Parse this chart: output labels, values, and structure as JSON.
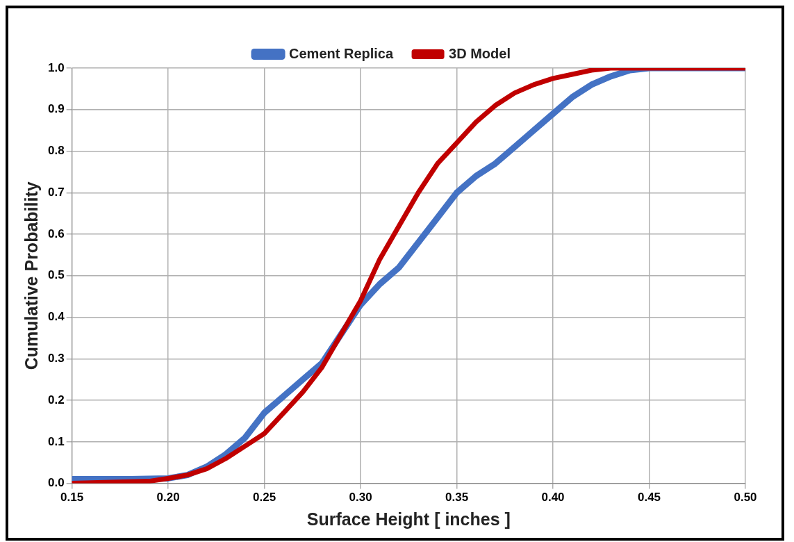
{
  "chart_data": {
    "type": "line",
    "xlabel": "Surface Height [ inches ]",
    "ylabel": "Cumulative Probability",
    "xlim": [
      0.15,
      0.5
    ],
    "xticks": [
      {
        "value": 0.15,
        "label": "0.15"
      },
      {
        "value": 0.2,
        "label": "0.20"
      },
      {
        "value": 0.25,
        "label": "0.25"
      },
      {
        "value": 0.3,
        "label": "0.30"
      },
      {
        "value": 0.35,
        "label": "0.35"
      },
      {
        "value": 0.4,
        "label": "0.40"
      },
      {
        "value": 0.45,
        "label": "0.45"
      },
      {
        "value": 0.5,
        "label": "0.50"
      }
    ],
    "ylim": [
      0,
      1
    ],
    "yticks": [
      {
        "value": 0,
        "label": "0.0"
      },
      {
        "value": 0.1,
        "label": "0.1"
      },
      {
        "value": 0.2,
        "label": "0.2"
      },
      {
        "value": 0.3,
        "label": "0.3"
      },
      {
        "value": 0.4,
        "label": "0.4"
      },
      {
        "value": 0.5,
        "label": "0.5"
      },
      {
        "value": 0.6,
        "label": "0.6"
      },
      {
        "value": 0.7,
        "label": "0.7"
      },
      {
        "value": 0.8,
        "label": "0.8"
      },
      {
        "value": 0.9,
        "label": "0.9"
      },
      {
        "value": 1,
        "label": "1.0"
      }
    ],
    "grid": true,
    "legend": "top",
    "marker": "none",
    "line_style": "solid",
    "series": [
      {
        "name": "Cement Replica",
        "color": "#4472c4",
        "x": [
          0.15,
          0.18,
          0.2,
          0.21,
          0.22,
          0.23,
          0.24,
          0.25,
          0.26,
          0.27,
          0.28,
          0.29,
          0.3,
          0.31,
          0.32,
          0.33,
          0.34,
          0.35,
          0.36,
          0.37,
          0.38,
          0.39,
          0.4,
          0.41,
          0.42,
          0.43,
          0.44,
          0.45,
          0.5
        ],
        "values": [
          0.01,
          0.01,
          0.012,
          0.02,
          0.04,
          0.07,
          0.11,
          0.17,
          0.21,
          0.25,
          0.29,
          0.36,
          0.43,
          0.48,
          0.52,
          0.58,
          0.64,
          0.7,
          0.74,
          0.77,
          0.81,
          0.85,
          0.89,
          0.93,
          0.96,
          0.98,
          0.995,
          1,
          1
        ]
      },
      {
        "name": "3D Model",
        "color": "#c00000",
        "x": [
          0.15,
          0.19,
          0.2,
          0.21,
          0.22,
          0.23,
          0.24,
          0.25,
          0.26,
          0.27,
          0.28,
          0.29,
          0.3,
          0.31,
          0.32,
          0.33,
          0.34,
          0.35,
          0.36,
          0.37,
          0.38,
          0.39,
          0.4,
          0.41,
          0.42,
          0.43,
          0.5
        ],
        "values": [
          0,
          0.005,
          0.012,
          0.02,
          0.035,
          0.06,
          0.09,
          0.12,
          0.17,
          0.22,
          0.28,
          0.36,
          0.44,
          0.54,
          0.62,
          0.7,
          0.77,
          0.82,
          0.87,
          0.91,
          0.94,
          0.96,
          0.975,
          0.985,
          0.995,
          1,
          1
        ]
      }
    ]
  }
}
